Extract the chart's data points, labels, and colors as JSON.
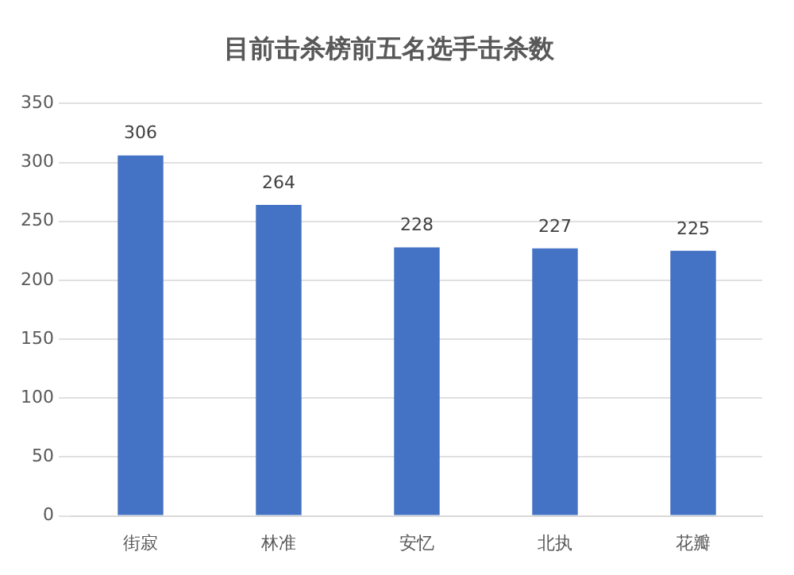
{
  "chart_data": {
    "type": "bar",
    "title": "目前击杀榜前五名选手击杀数",
    "categories": [
      "街寂",
      "林准",
      "安忆",
      "北执",
      "花瓣"
    ],
    "values": [
      306,
      264,
      228,
      227,
      225
    ],
    "color": "#4472c4",
    "ylim": [
      0,
      350
    ],
    "yticks": [
      0,
      50,
      100,
      150,
      200,
      250,
      300,
      350
    ],
    "grid": "y",
    "data_labels": true,
    "legend": false
  }
}
